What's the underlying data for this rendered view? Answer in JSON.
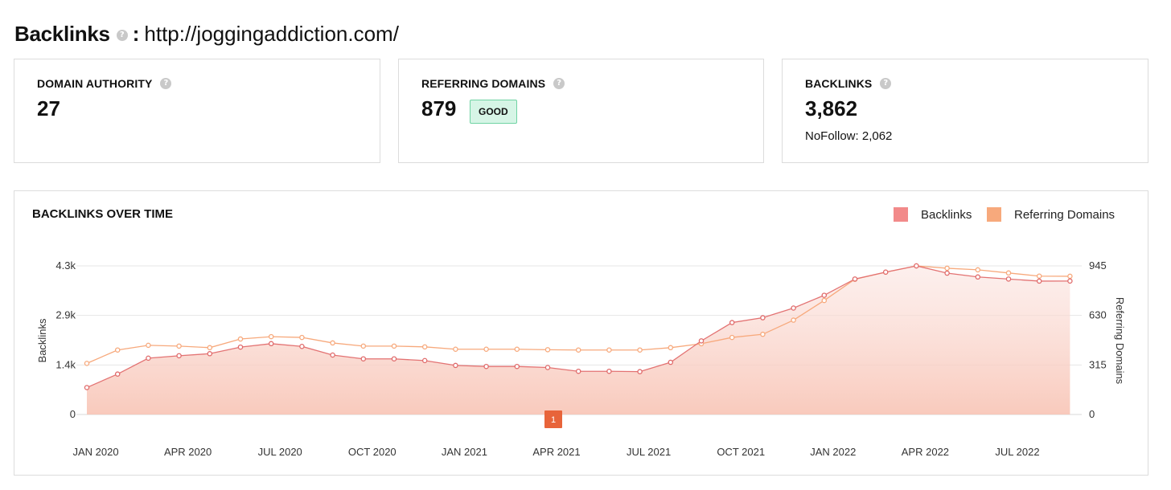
{
  "header": {
    "title": "Backlinks",
    "help_icon": "question-icon",
    "separator": ":",
    "url": "http://joggingaddiction.com/"
  },
  "cards": {
    "domain_authority": {
      "label": "DOMAIN AUTHORITY",
      "value": "27"
    },
    "referring_domains": {
      "label": "REFERRING DOMAINS",
      "value": "879",
      "badge": "GOOD"
    },
    "backlinks": {
      "label": "BACKLINKS",
      "value": "3,862",
      "nofollow": "NoFollow: 2,062"
    }
  },
  "colors": {
    "backlinks": "#f28a8a",
    "referring_domains": "#f7a97c",
    "badge_bg": "#d6f5e6",
    "marker": "#e8643a"
  },
  "chart_data": {
    "type": "line",
    "title": "BACKLINKS OVER TIME",
    "legend_position": "top-right",
    "grid": true,
    "x": [
      "2020-01",
      "2020-02",
      "2020-03",
      "2020-04",
      "2020-05",
      "2020-06",
      "2020-07",
      "2020-08",
      "2020-09",
      "2020-10",
      "2020-11",
      "2020-12",
      "2021-01",
      "2021-02",
      "2021-03",
      "2021-04",
      "2021-05",
      "2021-06",
      "2021-07",
      "2021-08",
      "2021-09",
      "2021-10",
      "2021-11",
      "2021-12",
      "2022-01",
      "2022-02",
      "2022-03",
      "2022-04",
      "2022-05",
      "2022-06",
      "2022-07",
      "2022-08",
      "2022-09"
    ],
    "x_ticks": [
      "JAN 2020",
      "APR 2020",
      "JUL 2020",
      "OCT 2020",
      "JAN 2021",
      "APR 2021",
      "JUL 2021",
      "OCT 2021",
      "JAN 2022",
      "APR 2022",
      "JUL 2022"
    ],
    "left_axis": {
      "label": "Backlinks",
      "ticks": [
        "0",
        "1.4k",
        "2.9k",
        "4.3k"
      ],
      "range": [
        0,
        4300
      ]
    },
    "right_axis": {
      "label": "Referring Domains",
      "ticks": [
        "0",
        "315",
        "630",
        "945"
      ],
      "range": [
        0,
        945
      ]
    },
    "series": [
      {
        "name": "Backlinks",
        "axis": "left",
        "values": [
          780,
          1170,
          1630,
          1700,
          1760,
          1950,
          2050,
          1970,
          1720,
          1610,
          1610,
          1560,
          1420,
          1390,
          1390,
          1360,
          1250,
          1250,
          1240,
          1510,
          2130,
          2660,
          2800,
          3080,
          3450,
          3920,
          4120,
          4300,
          4090,
          3980,
          3920,
          3860,
          3862
        ]
      },
      {
        "name": "Referring Domains",
        "axis": "right",
        "values": [
          325,
          410,
          440,
          435,
          425,
          480,
          495,
          490,
          455,
          435,
          435,
          430,
          415,
          415,
          415,
          412,
          410,
          410,
          410,
          425,
          450,
          490,
          510,
          600,
          725,
          860,
          905,
          945,
          930,
          920,
          900,
          880,
          879
        ]
      }
    ],
    "annotations": [
      {
        "x": "2021-04",
        "label": "1"
      }
    ]
  }
}
